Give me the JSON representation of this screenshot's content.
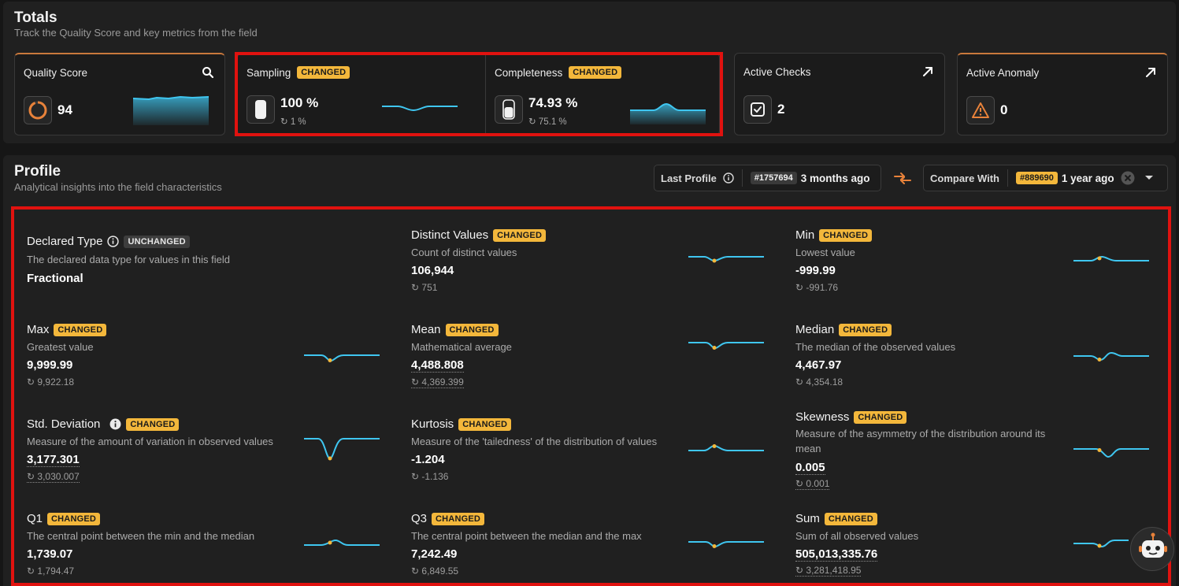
{
  "totals": {
    "title": "Totals",
    "subtitle": "Track the Quality Score and key metrics from the field",
    "cards": {
      "quality": {
        "title": "Quality Score",
        "value": "94",
        "corner_icon": "search-icon",
        "icon": "score-ring-icon"
      },
      "sampling": {
        "title": "Sampling",
        "badge": "CHANGED",
        "value": "100 %",
        "prev": "↻ 1 %",
        "icon": "pill-icon"
      },
      "completeness": {
        "title": "Completeness",
        "badge": "CHANGED",
        "value": "74.93 %",
        "prev": "↻ 75.1 %",
        "icon": "pill-icon"
      },
      "checks": {
        "title": "Active Checks",
        "value": "2",
        "corner_icon": "arrow-up-right-icon",
        "icon": "check-shield-icon"
      },
      "anomaly": {
        "title": "Active Anomaly",
        "value": "0",
        "corner_icon": "arrow-up-right-icon",
        "icon": "warning-triangle-icon"
      }
    }
  },
  "profile": {
    "title": "Profile",
    "subtitle": "Analytical insights into the field characteristics",
    "last_profile": {
      "label": "Last Profile",
      "id": "#1757694",
      "when": "3 months ago"
    },
    "compare_with": {
      "label": "Compare With",
      "id": "#889690",
      "when": "1 year ago"
    },
    "metrics": {
      "declared": {
        "title": "Declared Type",
        "badge": "UNCHANGED",
        "desc": "The declared data type for values in this field",
        "value": "Fractional"
      },
      "distinct": {
        "title": "Distinct Values",
        "badge": "CHANGED",
        "desc": "Count of distinct values",
        "value": "106,944",
        "prev": "↻ 751"
      },
      "min": {
        "title": "Min",
        "badge": "CHANGED",
        "desc": "Lowest value",
        "value": "-999.99",
        "prev": "↻ -991.76"
      },
      "max": {
        "title": "Max",
        "badge": "CHANGED",
        "desc": "Greatest value",
        "value": "9,999.99",
        "prev": "↻ 9,922.18"
      },
      "mean": {
        "title": "Mean",
        "badge": "CHANGED",
        "desc": "Mathematical average",
        "value": "4,488.808",
        "prev": "↻ 4,369.399"
      },
      "median": {
        "title": "Median",
        "badge": "CHANGED",
        "desc": "The median of the observed values",
        "value": "4,467.97",
        "prev": "↻ 4,354.18"
      },
      "std": {
        "title": "Std. Deviation",
        "badge": "CHANGED",
        "desc": "Measure of the amount of variation in observed values",
        "value": "3,177.301",
        "prev": "↻ 3,030.007"
      },
      "kurtosis": {
        "title": "Kurtosis",
        "badge": "CHANGED",
        "desc": "Measure of the 'tailedness' of the distribution of values",
        "value": "-1.204",
        "prev": "↻ -1.136"
      },
      "skewness": {
        "title": "Skewness",
        "badge": "CHANGED",
        "desc": "Measure of the asymmetry of the distribution around its mean",
        "value": "0.005",
        "prev": "↻ 0.001"
      },
      "q1": {
        "title": "Q1",
        "badge": "CHANGED",
        "desc": "The central point between the min and the median",
        "value": "1,739.07",
        "prev": "↻ 1,794.47"
      },
      "q3": {
        "title": "Q3",
        "badge": "CHANGED",
        "desc": "The central point between the median and the max",
        "value": "7,242.49",
        "prev": "↻ 6,849.55"
      },
      "sum": {
        "title": "Sum",
        "badge": "CHANGED",
        "desc": "Sum of all observed values",
        "value": "505,013,335.76",
        "prev": "↻ 3,281,418.95"
      }
    }
  },
  "colors": {
    "accent": "#f3b73b",
    "spark": "#3fc6f0",
    "highlight": "#e0120f",
    "orange": "#e8823a"
  }
}
